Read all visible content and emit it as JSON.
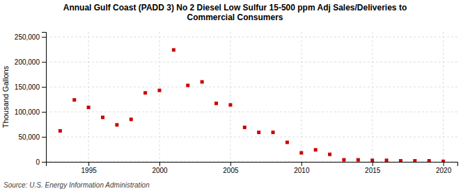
{
  "chart_data": {
    "type": "scatter",
    "title": "Annual Gulf Coast (PADD 3) No 2 Diesel Low Sulfur 15-500 ppm Adj Sales/Deliveries to\nCommercial Consumers",
    "ylabel": "Thousand Gallons",
    "annotations": [
      "Source: U.S. Energy Information Administration"
    ],
    "x": [
      1993,
      1994,
      1995,
      1996,
      1997,
      1998,
      1999,
      2000,
      2001,
      2002,
      2003,
      2004,
      2005,
      2006,
      2007,
      2008,
      2009,
      2010,
      2011,
      2012,
      2013,
      2014,
      2015,
      2016,
      2017,
      2018,
      2019,
      2020
    ],
    "values": [
      62000,
      124000,
      109000,
      89000,
      74000,
      85000,
      138000,
      143000,
      224000,
      153000,
      160000,
      117000,
      114000,
      69000,
      59000,
      59000,
      39000,
      18000,
      24000,
      15000,
      4000,
      4000,
      3000,
      3000,
      2000,
      2000,
      2000,
      1000
    ],
    "color": "#cc0000",
    "marker": "square",
    "xlim": [
      1992,
      2021
    ],
    "xticks": [
      1995,
      2000,
      2005,
      2010,
      2015,
      2020
    ],
    "ylim": [
      0,
      260000
    ],
    "yticks": [
      0,
      {
        "value": 50000,
        "label": "50,000"
      },
      {
        "value": 100000,
        "label": "100,000"
      },
      {
        "value": 150000,
        "label": "150,000"
      },
      {
        "value": 200000,
        "label": "200,000"
      },
      {
        "value": 250000,
        "label": "250,000"
      }
    ],
    "grid": true
  }
}
